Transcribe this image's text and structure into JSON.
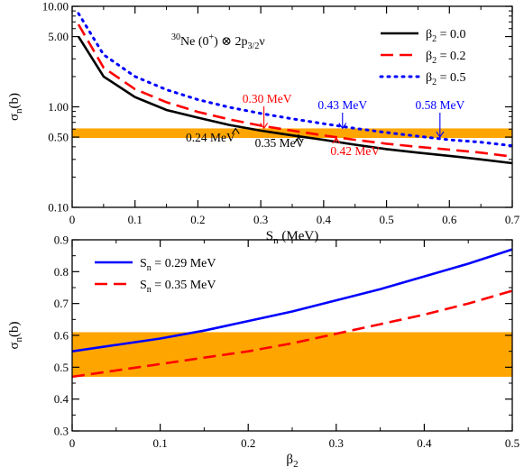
{
  "chart_data": [
    {
      "type": "line",
      "title": "",
      "panel_label": {
        "nucleus": "Ne",
        "mass": "30",
        "spin": "(0",
        "spin_sup": "+",
        "after": ") ⊗ 2p",
        "orbital_sub": "3/2",
        "nu": "ν"
      },
      "xlabel": {
        "main": "S",
        "sub": "n",
        "unit": " (MeV)"
      },
      "ylabel": {
        "main": "σ",
        "sub": "n",
        "unit": "(b)"
      },
      "xlim": [
        0,
        0.7
      ],
      "ylim": [
        0.1,
        10
      ],
      "yscale": "log",
      "xticks": [
        0,
        0.1,
        0.2,
        0.3,
        0.4,
        0.5,
        0.6,
        0.7
      ],
      "xtick_labels": [
        "0",
        "0.1",
        "0.2",
        "0.3",
        "0.4",
        "0.5",
        "0.6",
        "0.7"
      ],
      "yticks": [
        0.1,
        0.5,
        1.0,
        5.0,
        10.0
      ],
      "ytick_labels": [
        "0.10",
        "0.50",
        "1.00",
        "5.00",
        "10.00"
      ],
      "band": {
        "y_low": 0.49,
        "y_high": 0.61,
        "color": "#FFA500"
      },
      "legend_position": "top-right",
      "series": [
        {
          "legend_main": "β",
          "legend_sub": "2",
          "legend_rest": " = 0.0",
          "color": "#000000",
          "style": "solid",
          "x": [
            0.01,
            0.05,
            0.1,
            0.15,
            0.2,
            0.25,
            0.3,
            0.35,
            0.4,
            0.45,
            0.5,
            0.55,
            0.6,
            0.65,
            0.7
          ],
          "y": [
            5.0,
            2.0,
            1.25,
            0.93,
            0.78,
            0.66,
            0.58,
            0.52,
            0.47,
            0.42,
            0.38,
            0.35,
            0.325,
            0.3,
            0.275
          ]
        },
        {
          "legend_main": "β",
          "legend_sub": "2",
          "legend_rest": " = 0.2",
          "color": "#FF0000",
          "style": "dashed",
          "x": [
            0.01,
            0.05,
            0.1,
            0.15,
            0.2,
            0.25,
            0.3,
            0.35,
            0.4,
            0.45,
            0.5,
            0.55,
            0.6,
            0.65,
            0.7
          ],
          "y": [
            6.6,
            2.45,
            1.5,
            1.11,
            0.89,
            0.75,
            0.65,
            0.58,
            0.52,
            0.47,
            0.43,
            0.4,
            0.375,
            0.35,
            0.32
          ]
        },
        {
          "legend_main": "β",
          "legend_sub": "2",
          "legend_rest": " = 0.5",
          "color": "#0000FF",
          "style": "dotted",
          "x": [
            0.01,
            0.05,
            0.1,
            0.15,
            0.2,
            0.25,
            0.3,
            0.35,
            0.4,
            0.45,
            0.5,
            0.55,
            0.6,
            0.65,
            0.7
          ],
          "y": [
            8.5,
            3.3,
            2.0,
            1.48,
            1.18,
            0.99,
            0.86,
            0.76,
            0.68,
            0.61,
            0.555,
            0.51,
            0.47,
            0.445,
            0.41
          ]
        }
      ],
      "annotations": [
        {
          "text": "0.30 MeV",
          "color": "#FF0000",
          "arrow_x": 0.305,
          "arrow_y": 0.61,
          "label_x": 0.31,
          "label_y": 1.1,
          "label_pos": "above"
        },
        {
          "text": "0.43 MeV",
          "color": "#0000FF",
          "arrow_x": 0.43,
          "arrow_y": 0.61,
          "label_x": 0.43,
          "label_y": 0.95,
          "label_pos": "above"
        },
        {
          "text": "0.58 MeV",
          "color": "#0000FF",
          "arrow_x": 0.585,
          "arrow_y": 0.5,
          "label_x": 0.585,
          "label_y": 0.95,
          "label_pos": "above"
        },
        {
          "text": "0.24 MeV",
          "color": "#000000",
          "arrow_x": 0.26,
          "arrow_y": 0.61,
          "label_x": 0.22,
          "label_y": 0.45,
          "label_pos": "below"
        },
        {
          "text": "0.35 MeV",
          "color": "#000000",
          "arrow_x": 0.36,
          "arrow_y": 0.5,
          "label_x": 0.33,
          "label_y": 0.4,
          "label_pos": "below"
        },
        {
          "text": "0.42 MeV",
          "color": "#FF0000",
          "arrow_x": 0.42,
          "arrow_y": 0.49,
          "label_x": 0.45,
          "label_y": 0.33,
          "label_pos": "below"
        }
      ]
    },
    {
      "type": "line",
      "title": "",
      "xlabel": {
        "main": "β",
        "sub": "2",
        "unit": ""
      },
      "ylabel": {
        "main": "σ",
        "sub": "n",
        "unit": "(b)"
      },
      "xlim": [
        0,
        0.5
      ],
      "ylim": [
        0.3,
        0.9
      ],
      "yscale": "linear",
      "xticks": [
        0,
        0.1,
        0.2,
        0.3,
        0.4,
        0.5
      ],
      "xtick_labels": [
        "0",
        "0.1",
        "0.2",
        "0.3",
        "0.4",
        "0.5"
      ],
      "yticks": [
        0.3,
        0.4,
        0.5,
        0.6,
        0.7,
        0.8,
        0.9
      ],
      "ytick_labels": [
        "0.3",
        "0.4",
        "0.5",
        "0.6",
        "0.7",
        "0.8",
        "0.9"
      ],
      "band": {
        "y_low": 0.47,
        "y_high": 0.61,
        "color": "#FFA500"
      },
      "legend_position": "top-left",
      "series": [
        {
          "legend_main": "S",
          "legend_sub": "n",
          "legend_rest": " = 0.29 MeV",
          "color": "#0000FF",
          "style": "solid",
          "x": [
            0.0,
            0.05,
            0.1,
            0.15,
            0.2,
            0.25,
            0.3,
            0.35,
            0.4,
            0.45,
            0.5
          ],
          "y": [
            0.55,
            0.57,
            0.59,
            0.615,
            0.645,
            0.675,
            0.71,
            0.745,
            0.785,
            0.825,
            0.87
          ]
        },
        {
          "legend_main": "S",
          "legend_sub": "n",
          "legend_rest": " = 0.35 MeV",
          "color": "#FF0000",
          "style": "dashed",
          "x": [
            0.0,
            0.05,
            0.1,
            0.15,
            0.2,
            0.25,
            0.3,
            0.35,
            0.4,
            0.45,
            0.5
          ],
          "y": [
            0.47,
            0.49,
            0.51,
            0.53,
            0.55,
            0.575,
            0.605,
            0.635,
            0.665,
            0.7,
            0.74
          ]
        }
      ]
    }
  ]
}
